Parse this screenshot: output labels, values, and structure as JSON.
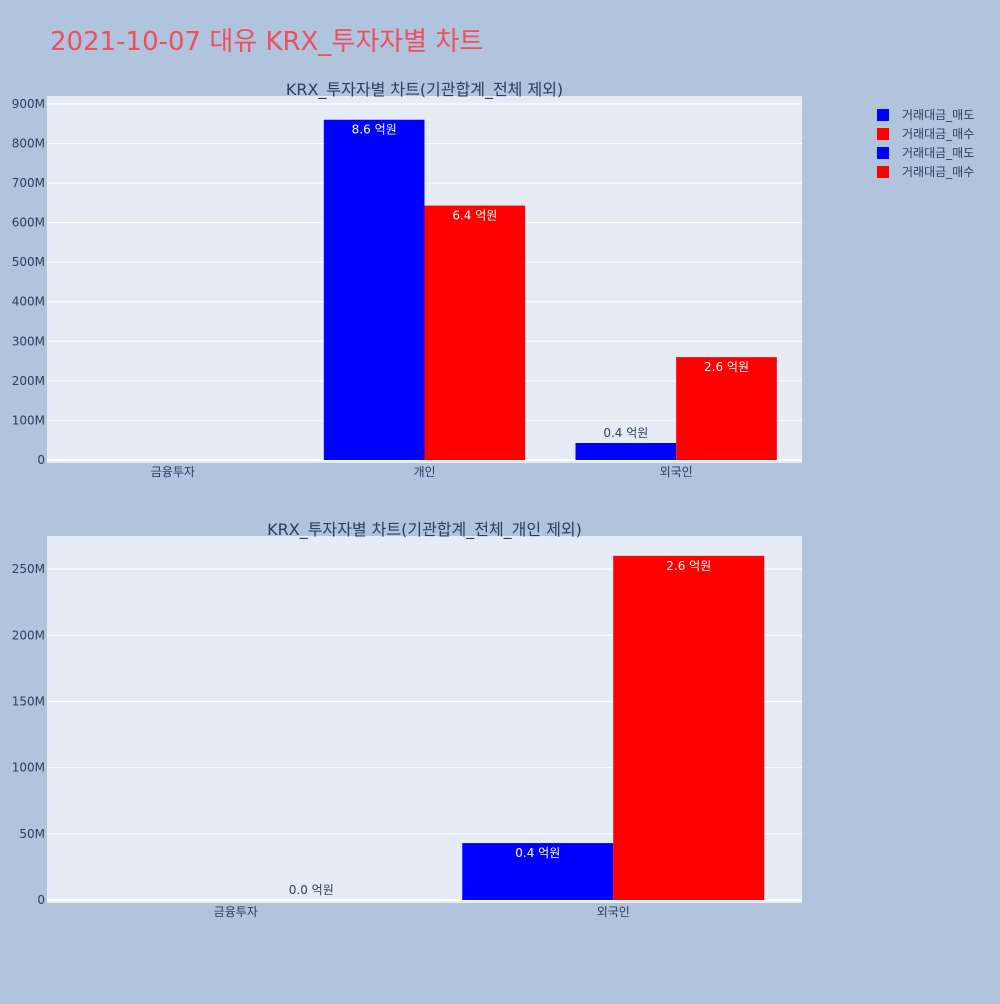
{
  "page": {
    "title": "2021-10-07 대유 KRX_투자자별 차트",
    "title_color": "#ef4f5f",
    "background": "#b0c4de",
    "plot_background": "#e5ecf6"
  },
  "legend": {
    "placement": "top-right",
    "items": [
      {
        "label": "거래대금_매도",
        "color": "#0000ff"
      },
      {
        "label": "거래대금_매수",
        "color": "#ff0000"
      },
      {
        "label": "거래대금_매도",
        "color": "#0000ff"
      },
      {
        "label": "거래대금_매수",
        "color": "#ff0000"
      }
    ]
  },
  "chart_data": [
    {
      "type": "bar",
      "title": "KRX_투자자별 차트(기관합계_전체 제외)",
      "categories": [
        "금융투자",
        "개인",
        "외국인"
      ],
      "ylim": [
        0,
        920000000
      ],
      "yticks": [
        0,
        100000000,
        200000000,
        300000000,
        400000000,
        500000000,
        600000000,
        700000000,
        800000000,
        900000000
      ],
      "ytick_labels": [
        "0",
        "100M",
        "200M",
        "300M",
        "400M",
        "500M",
        "600M",
        "700M",
        "800M",
        "900M"
      ],
      "grid": true,
      "series": [
        {
          "name": "거래대금_매도",
          "color": "#0000ff",
          "values": [
            0,
            860000000,
            43000000
          ],
          "labels": [
            "",
            "8.6 억원",
            "0.4 억원"
          ]
        },
        {
          "name": "거래대금_매수",
          "color": "#ff0000",
          "values": [
            0,
            643000000,
            260000000
          ],
          "labels": [
            "",
            "6.4 억원",
            "2.6 억원"
          ]
        }
      ]
    },
    {
      "type": "bar",
      "title": "KRX_투자자별 차트(기관합계_전체_개인 제외)",
      "categories": [
        "금융투자",
        "외국인"
      ],
      "ylim": [
        0,
        275000000
      ],
      "yticks": [
        0,
        50000000,
        100000000,
        150000000,
        200000000,
        250000000
      ],
      "ytick_labels": [
        "0",
        "50M",
        "100M",
        "150M",
        "200M",
        "250M"
      ],
      "grid": true,
      "series": [
        {
          "name": "거래대금_매도",
          "color": "#0000ff",
          "values": [
            0,
            43000000
          ],
          "labels": [
            "",
            "0.4 억원"
          ]
        },
        {
          "name": "거래대금_매수",
          "color": "#ff0000",
          "values": [
            0,
            260000000
          ],
          "labels": [
            "0.0 억원",
            "2.6 억원"
          ]
        }
      ]
    }
  ]
}
